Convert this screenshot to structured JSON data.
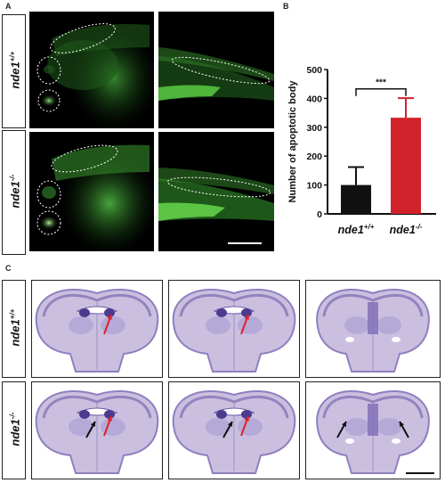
{
  "panels": {
    "a": {
      "label": "A"
    },
    "b": {
      "label": "B"
    },
    "c": {
      "label": "C"
    }
  },
  "rows": {
    "wt": {
      "gene": "nde1",
      "sup": "+/+"
    },
    "ko": {
      "gene": "nde1",
      "sup": "-/-"
    }
  },
  "chart_data": {
    "type": "bar",
    "categories": [
      {
        "gene": "nde1",
        "sup": "+/+"
      },
      {
        "gene": "nde1",
        "sup": "-/-"
      }
    ],
    "values": [
      100,
      333
    ],
    "errors": [
      62,
      68
    ],
    "bar_colors": [
      "#111111",
      "#d1222b"
    ],
    "ylabel": "Number of  apoptotic body",
    "ylim": [
      0,
      500
    ],
    "yticks": [
      0,
      100,
      200,
      300,
      400,
      500
    ],
    "significance": "***"
  },
  "colors": {
    "fluorescence": "#3fa83a",
    "histology_stain": "#8f7fbf",
    "red_arrow": "#e0202a",
    "black_arrow": "#111111"
  }
}
